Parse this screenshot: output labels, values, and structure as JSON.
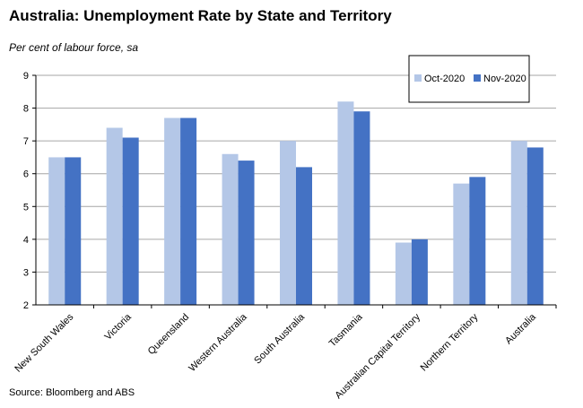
{
  "chart_data": {
    "type": "bar",
    "title": "Australia: Unemployment Rate by State and Territory",
    "subtitle": "Per cent of labour force, sa",
    "source": "Source: Bloomberg and ABS",
    "xlabel": "",
    "ylabel": "",
    "ylim": [
      2,
      9
    ],
    "yticks": [
      2,
      3,
      4,
      5,
      6,
      7,
      8,
      9
    ],
    "grid": true,
    "legend_position": "top-right",
    "categories": [
      "New South Wales",
      "Victoria",
      "Queensland",
      "Western Australia",
      "South Australia",
      "Tasmania",
      "Australian Capital Territory",
      "Northern Territory",
      "Australia"
    ],
    "series": [
      {
        "name": "Oct-2020",
        "color": "#b4c7e7",
        "values": [
          6.5,
          7.4,
          7.7,
          6.6,
          7.0,
          8.2,
          3.9,
          5.7,
          7.0
        ]
      },
      {
        "name": "Nov-2020",
        "color": "#4472c4",
        "values": [
          6.5,
          7.1,
          7.7,
          6.4,
          6.2,
          7.9,
          4.0,
          5.9,
          6.8
        ]
      }
    ]
  }
}
